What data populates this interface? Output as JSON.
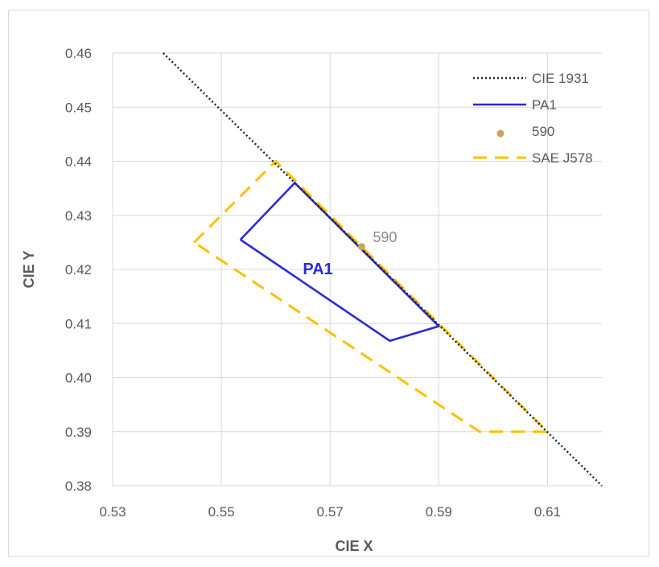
{
  "chart_data": {
    "type": "line",
    "xlabel": "CIE X",
    "ylabel": "CIE Y",
    "xlim": [
      0.53,
      0.62
    ],
    "ylim": [
      0.38,
      0.46
    ],
    "x_ticks": [
      "0.53",
      "0.55",
      "0.57",
      "0.59",
      "0.61"
    ],
    "y_ticks": [
      "0.38",
      "0.39",
      "0.40",
      "0.41",
      "0.42",
      "0.43",
      "0.44",
      "0.45",
      "0.46"
    ],
    "grid": "vertical and horizontal",
    "legend_position": "top-right",
    "series": [
      {
        "name": "CIE 1931",
        "style": "dotted",
        "color": "#222222",
        "points": [
          [
            0.5393,
            0.46
          ],
          [
            0.62,
            0.38
          ]
        ]
      },
      {
        "name": "PA1",
        "style": "solid",
        "color": "#2B2BD6",
        "points": [
          [
            0.5535,
            0.4255
          ],
          [
            0.5635,
            0.436
          ],
          [
            0.59,
            0.4095
          ],
          [
            0.581,
            0.4068
          ],
          [
            0.5535,
            0.4255
          ]
        ]
      },
      {
        "name": "590",
        "style": "marker",
        "color": "#C9A45C",
        "points": [
          [
            0.5758,
            0.4242
          ]
        ]
      },
      {
        "name": "SAE J578",
        "style": "dashed",
        "color": "#FFC000",
        "points": [
          [
            0.545,
            0.425
          ],
          [
            0.56,
            0.44
          ],
          [
            0.61,
            0.39
          ],
          [
            0.5975,
            0.39
          ],
          [
            0.545,
            0.425
          ]
        ]
      }
    ],
    "annotations": [
      {
        "text": "590",
        "x": 0.5758,
        "y": 0.4242,
        "color": "#8C8C8C"
      },
      {
        "text": "PA1",
        "x": 0.5685,
        "y": 0.4203,
        "color": "#2B2BD6"
      }
    ]
  }
}
